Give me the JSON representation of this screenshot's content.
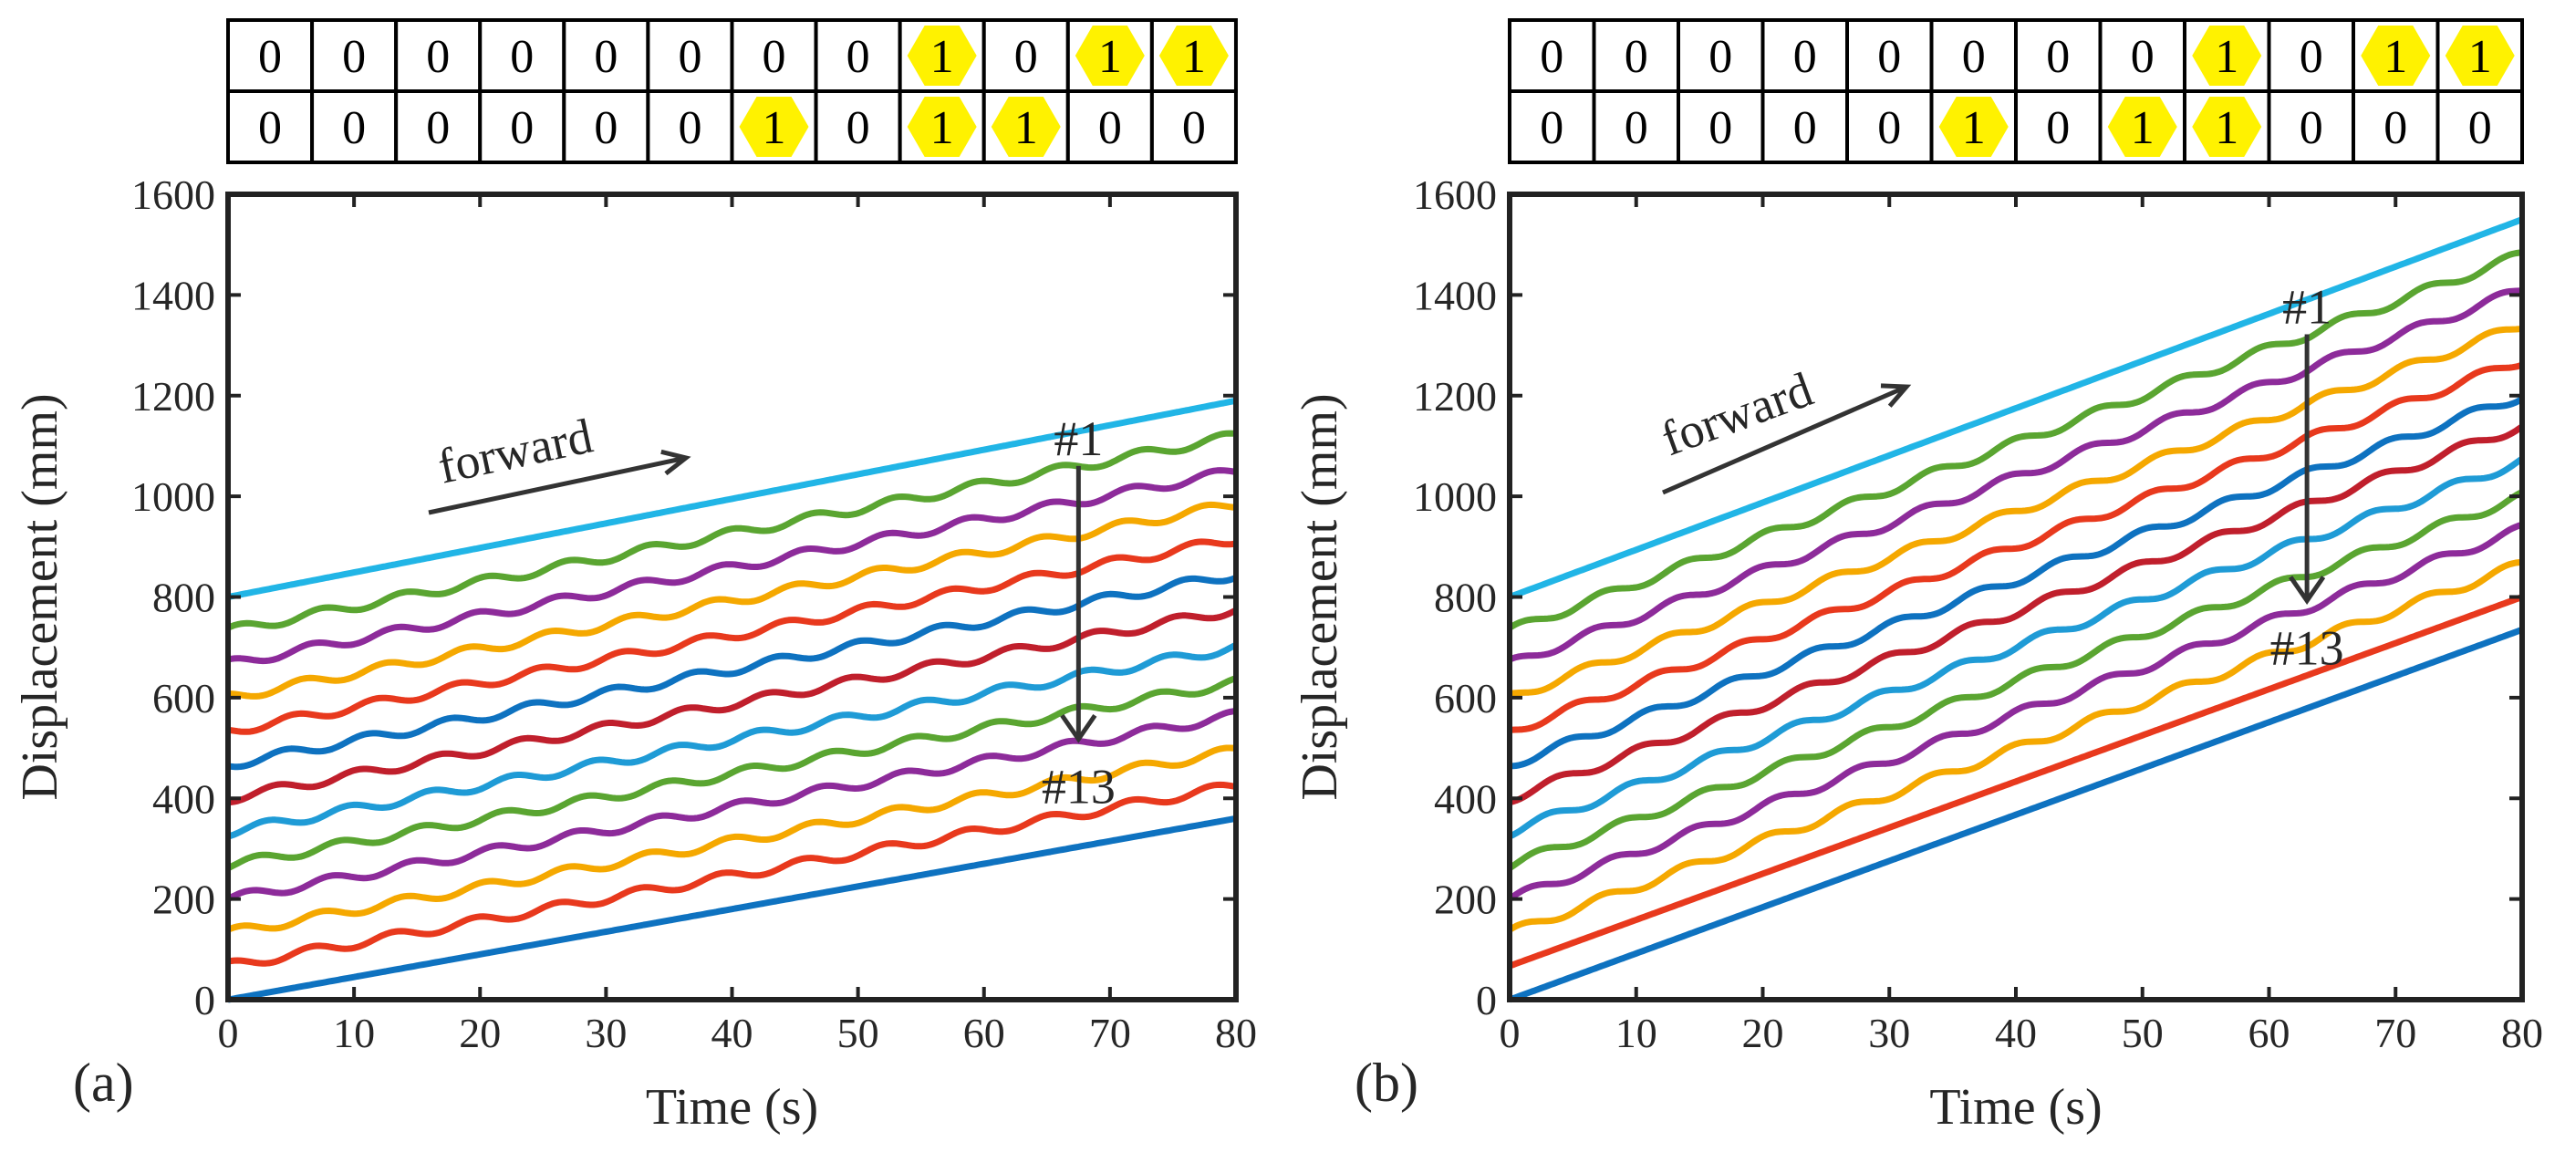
{
  "colors": {
    "series": [
      "#1f9bd6",
      "#5aa531",
      "#8d2b9a",
      "#f5a800",
      "#e8391d",
      "#0e72c0",
      "#c01f2c",
      "#1f9bd6",
      "#5aa531",
      "#8d2b9a",
      "#f5a800",
      "#e8391d",
      "#0e72c0"
    ],
    "top_series": "#21b5e6",
    "arrow": "#333333",
    "hex": "#fff200"
  },
  "chart_data": [
    {
      "type": "line",
      "panel_label": "(a)",
      "xlabel": "Time (s)",
      "ylabel": "Displacement (mm)",
      "xlim": [
        0,
        80
      ],
      "ylim": [
        0,
        1600
      ],
      "x_ticks": [
        "0",
        "10",
        "20",
        "30",
        "40",
        "50",
        "60",
        "70",
        "80"
      ],
      "y_ticks": [
        "0",
        "200",
        "400",
        "600",
        "800",
        "1000",
        "1200",
        "1400",
        "1600"
      ],
      "series_start": [
        800,
        733,
        667,
        600,
        533,
        467,
        400,
        333,
        267,
        200,
        133,
        67,
        0
      ],
      "series_end": [
        1190,
        1120,
        1050,
        985,
        915,
        845,
        775,
        700,
        630,
        565,
        495,
        425,
        360
      ],
      "series_wavy": [
        false,
        true,
        true,
        true,
        true,
        true,
        true,
        true,
        true,
        true,
        true,
        true,
        false
      ],
      "annotations": {
        "direction": "forward",
        "first": "#1",
        "last": "#13"
      },
      "arrow_x": 67.5,
      "grid": false,
      "pattern_rows": [
        [
          "0",
          "0",
          "0",
          "0",
          "0",
          "0",
          "0",
          "0",
          "1",
          "0",
          "1",
          "1"
        ],
        [
          "0",
          "0",
          "0",
          "0",
          "0",
          "0",
          "1",
          "0",
          "1",
          "1",
          "0",
          "0"
        ]
      ]
    },
    {
      "type": "line",
      "panel_label": "(b)",
      "xlabel": "Time (s)",
      "ylabel": "Displacement (mm)",
      "xlim": [
        0,
        80
      ],
      "ylim": [
        0,
        1600
      ],
      "x_ticks": [
        "0",
        "10",
        "20",
        "30",
        "40",
        "50",
        "60",
        "70",
        "80"
      ],
      "y_ticks": [
        "0",
        "200",
        "400",
        "600",
        "800",
        "1000",
        "1200",
        "1400",
        "1600"
      ],
      "series_start": [
        800,
        733,
        667,
        600,
        533,
        467,
        400,
        333,
        267,
        200,
        133,
        67,
        0
      ],
      "series_end": [
        1550,
        1480,
        1410,
        1340,
        1270,
        1200,
        1140,
        1070,
        1000,
        935,
        865,
        800,
        735
      ],
      "series_wavy": [
        false,
        true,
        true,
        true,
        true,
        true,
        true,
        true,
        true,
        true,
        true,
        false,
        false
      ],
      "annotations": {
        "direction": "forward",
        "first": "#1",
        "last": "#13"
      },
      "arrow_x": 63,
      "grid": false,
      "pattern_rows": [
        [
          "0",
          "0",
          "0",
          "0",
          "0",
          "0",
          "0",
          "0",
          "1",
          "0",
          "1",
          "1"
        ],
        [
          "0",
          "0",
          "0",
          "0",
          "0",
          "1",
          "0",
          "1",
          "1",
          "0",
          "0",
          "0"
        ]
      ]
    }
  ]
}
